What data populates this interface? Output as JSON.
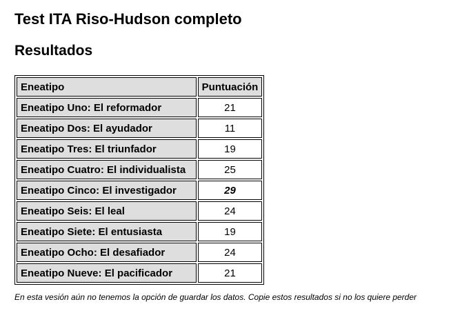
{
  "page": {
    "title": "Test ITA Riso-Hudson completo",
    "subtitle": "Resultados"
  },
  "table": {
    "headers": [
      "Eneatipo",
      "Puntuación"
    ],
    "rows": [
      {
        "label": "Eneatipo Uno: El reformador",
        "score": "21"
      },
      {
        "label": "Eneatipo Dos: El ayudador",
        "score": "11"
      },
      {
        "label": "Eneatipo Tres: El triunfador",
        "score": "19"
      },
      {
        "label": "Eneatipo Cuatro: El individualista",
        "score": "25"
      },
      {
        "label": "Eneatipo Cinco: El investigador",
        "score": "29"
      },
      {
        "label": "Eneatipo Seis: El leal",
        "score": "24"
      },
      {
        "label": "Eneatipo Siete: El entusiasta",
        "score": "19"
      },
      {
        "label": "Eneatipo Ocho: El desafiador",
        "score": "24"
      },
      {
        "label": "Eneatipo Nueve: El pacificador",
        "score": "21"
      }
    ],
    "highlighted_row": 4
  },
  "note": "En esta vesión aún no tenemos la opción de guardar los datos. Copie estos resultados si no los quiere perder"
}
